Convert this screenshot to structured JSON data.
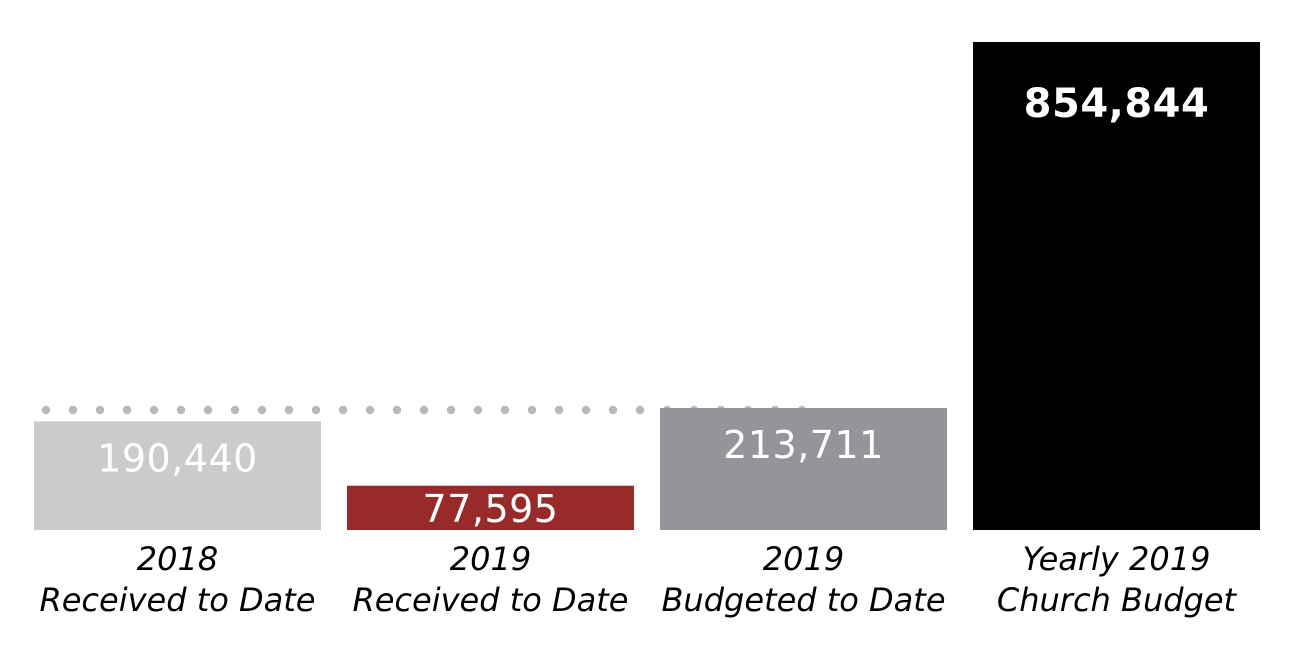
{
  "chart_data": {
    "type": "bar",
    "categories": [
      [
        "2018",
        "Received to Date"
      ],
      [
        "2019",
        "Received to Date"
      ],
      [
        "2019",
        "Budgeted to Date"
      ],
      [
        "Yearly 2019",
        "Church Budget"
      ]
    ],
    "values": [
      190440,
      77595,
      213711,
      854844
    ],
    "value_labels": [
      "190,440",
      "77,595",
      "213,711",
      "854,844"
    ],
    "bar_colors": [
      "#cacbcd",
      "#982a2a",
      "#939598",
      "#000000"
    ],
    "reference_line": {
      "value": 213711,
      "style": "dotted",
      "color": "#b8b8b8"
    },
    "ylim": [
      0,
      854844
    ],
    "grid": false,
    "legend": "none",
    "title": "",
    "xlabel": "",
    "ylabel": ""
  }
}
